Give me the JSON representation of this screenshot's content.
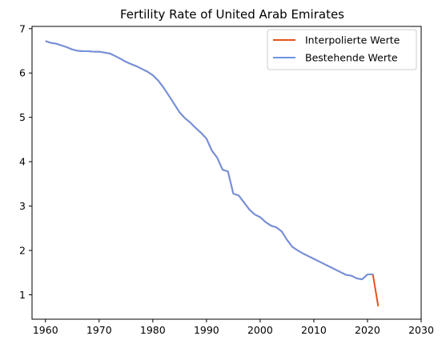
{
  "chart_data": {
    "type": "line",
    "title": "Fertility Rate of United Arab Emirates",
    "xlabel": "",
    "ylabel": "",
    "xlim": [
      1957.5,
      2030
    ],
    "ylim": [
      0.45,
      7.05
    ],
    "xticks": [
      1960,
      1970,
      1980,
      1990,
      2000,
      2010,
      2020,
      2030
    ],
    "yticks": [
      1,
      2,
      3,
      4,
      5,
      6,
      7
    ],
    "grid": false,
    "legend_position": "top-right",
    "series": [
      {
        "name": "Interpolierte Werte",
        "color": "#e8501a",
        "x": [
          1960,
          1961,
          1962,
          1963,
          1964,
          1965,
          1966,
          1967,
          1968,
          1969,
          1970,
          1971,
          1972,
          1973,
          1974,
          1975,
          1976,
          1977,
          1978,
          1979,
          1980,
          1981,
          1982,
          1983,
          1984,
          1985,
          1986,
          1987,
          1988,
          1989,
          1990,
          1991,
          1992,
          1993,
          1994,
          1995,
          1996,
          1997,
          1998,
          1999,
          2000,
          2001,
          2002,
          2003,
          2004,
          2005,
          2006,
          2007,
          2008,
          2009,
          2010,
          2011,
          2012,
          2013,
          2014,
          2015,
          2016,
          2017,
          2018,
          2019,
          2020,
          2021,
          2022
        ],
        "y": [
          6.72,
          6.68,
          6.66,
          6.62,
          6.58,
          6.53,
          6.5,
          6.49,
          6.49,
          6.48,
          6.48,
          6.46,
          6.44,
          6.38,
          6.32,
          6.25,
          6.2,
          6.15,
          6.09,
          6.03,
          5.95,
          5.83,
          5.67,
          5.49,
          5.3,
          5.11,
          4.98,
          4.88,
          4.76,
          4.65,
          4.52,
          4.25,
          4.09,
          3.82,
          3.78,
          3.28,
          3.24,
          3.08,
          2.92,
          2.81,
          2.75,
          2.64,
          2.56,
          2.52,
          2.43,
          2.24,
          2.08,
          2.0,
          1.93,
          1.87,
          1.81,
          1.75,
          1.69,
          1.63,
          1.57,
          1.51,
          1.45,
          1.43,
          1.37,
          1.35,
          1.46,
          1.46,
          0.74
        ]
      },
      {
        "name": "Bestehende Werte",
        "color": "#6f93e2",
        "x": [
          1960,
          1961,
          1962,
          1963,
          1964,
          1965,
          1966,
          1967,
          1968,
          1969,
          1970,
          1971,
          1972,
          1973,
          1974,
          1975,
          1976,
          1977,
          1978,
          1979,
          1980,
          1981,
          1982,
          1983,
          1984,
          1985,
          1986,
          1987,
          1988,
          1989,
          1990,
          1991,
          1992,
          1993,
          1994,
          1995,
          1996,
          1997,
          1998,
          1999,
          2000,
          2001,
          2002,
          2003,
          2004,
          2005,
          2006,
          2007,
          2008,
          2009,
          2010,
          2011,
          2012,
          2013,
          2014,
          2015,
          2016,
          2017,
          2018,
          2019,
          2020,
          2021
        ],
        "y": [
          6.72,
          6.68,
          6.66,
          6.62,
          6.58,
          6.53,
          6.5,
          6.49,
          6.49,
          6.48,
          6.48,
          6.46,
          6.44,
          6.38,
          6.32,
          6.25,
          6.2,
          6.15,
          6.09,
          6.03,
          5.95,
          5.83,
          5.67,
          5.49,
          5.3,
          5.11,
          4.98,
          4.88,
          4.76,
          4.65,
          4.52,
          4.25,
          4.09,
          3.82,
          3.78,
          3.28,
          3.24,
          3.08,
          2.92,
          2.81,
          2.75,
          2.64,
          2.56,
          2.52,
          2.43,
          2.24,
          2.08,
          2.0,
          1.93,
          1.87,
          1.81,
          1.75,
          1.69,
          1.63,
          1.57,
          1.51,
          1.45,
          1.43,
          1.37,
          1.35,
          1.46,
          1.46
        ]
      }
    ]
  }
}
